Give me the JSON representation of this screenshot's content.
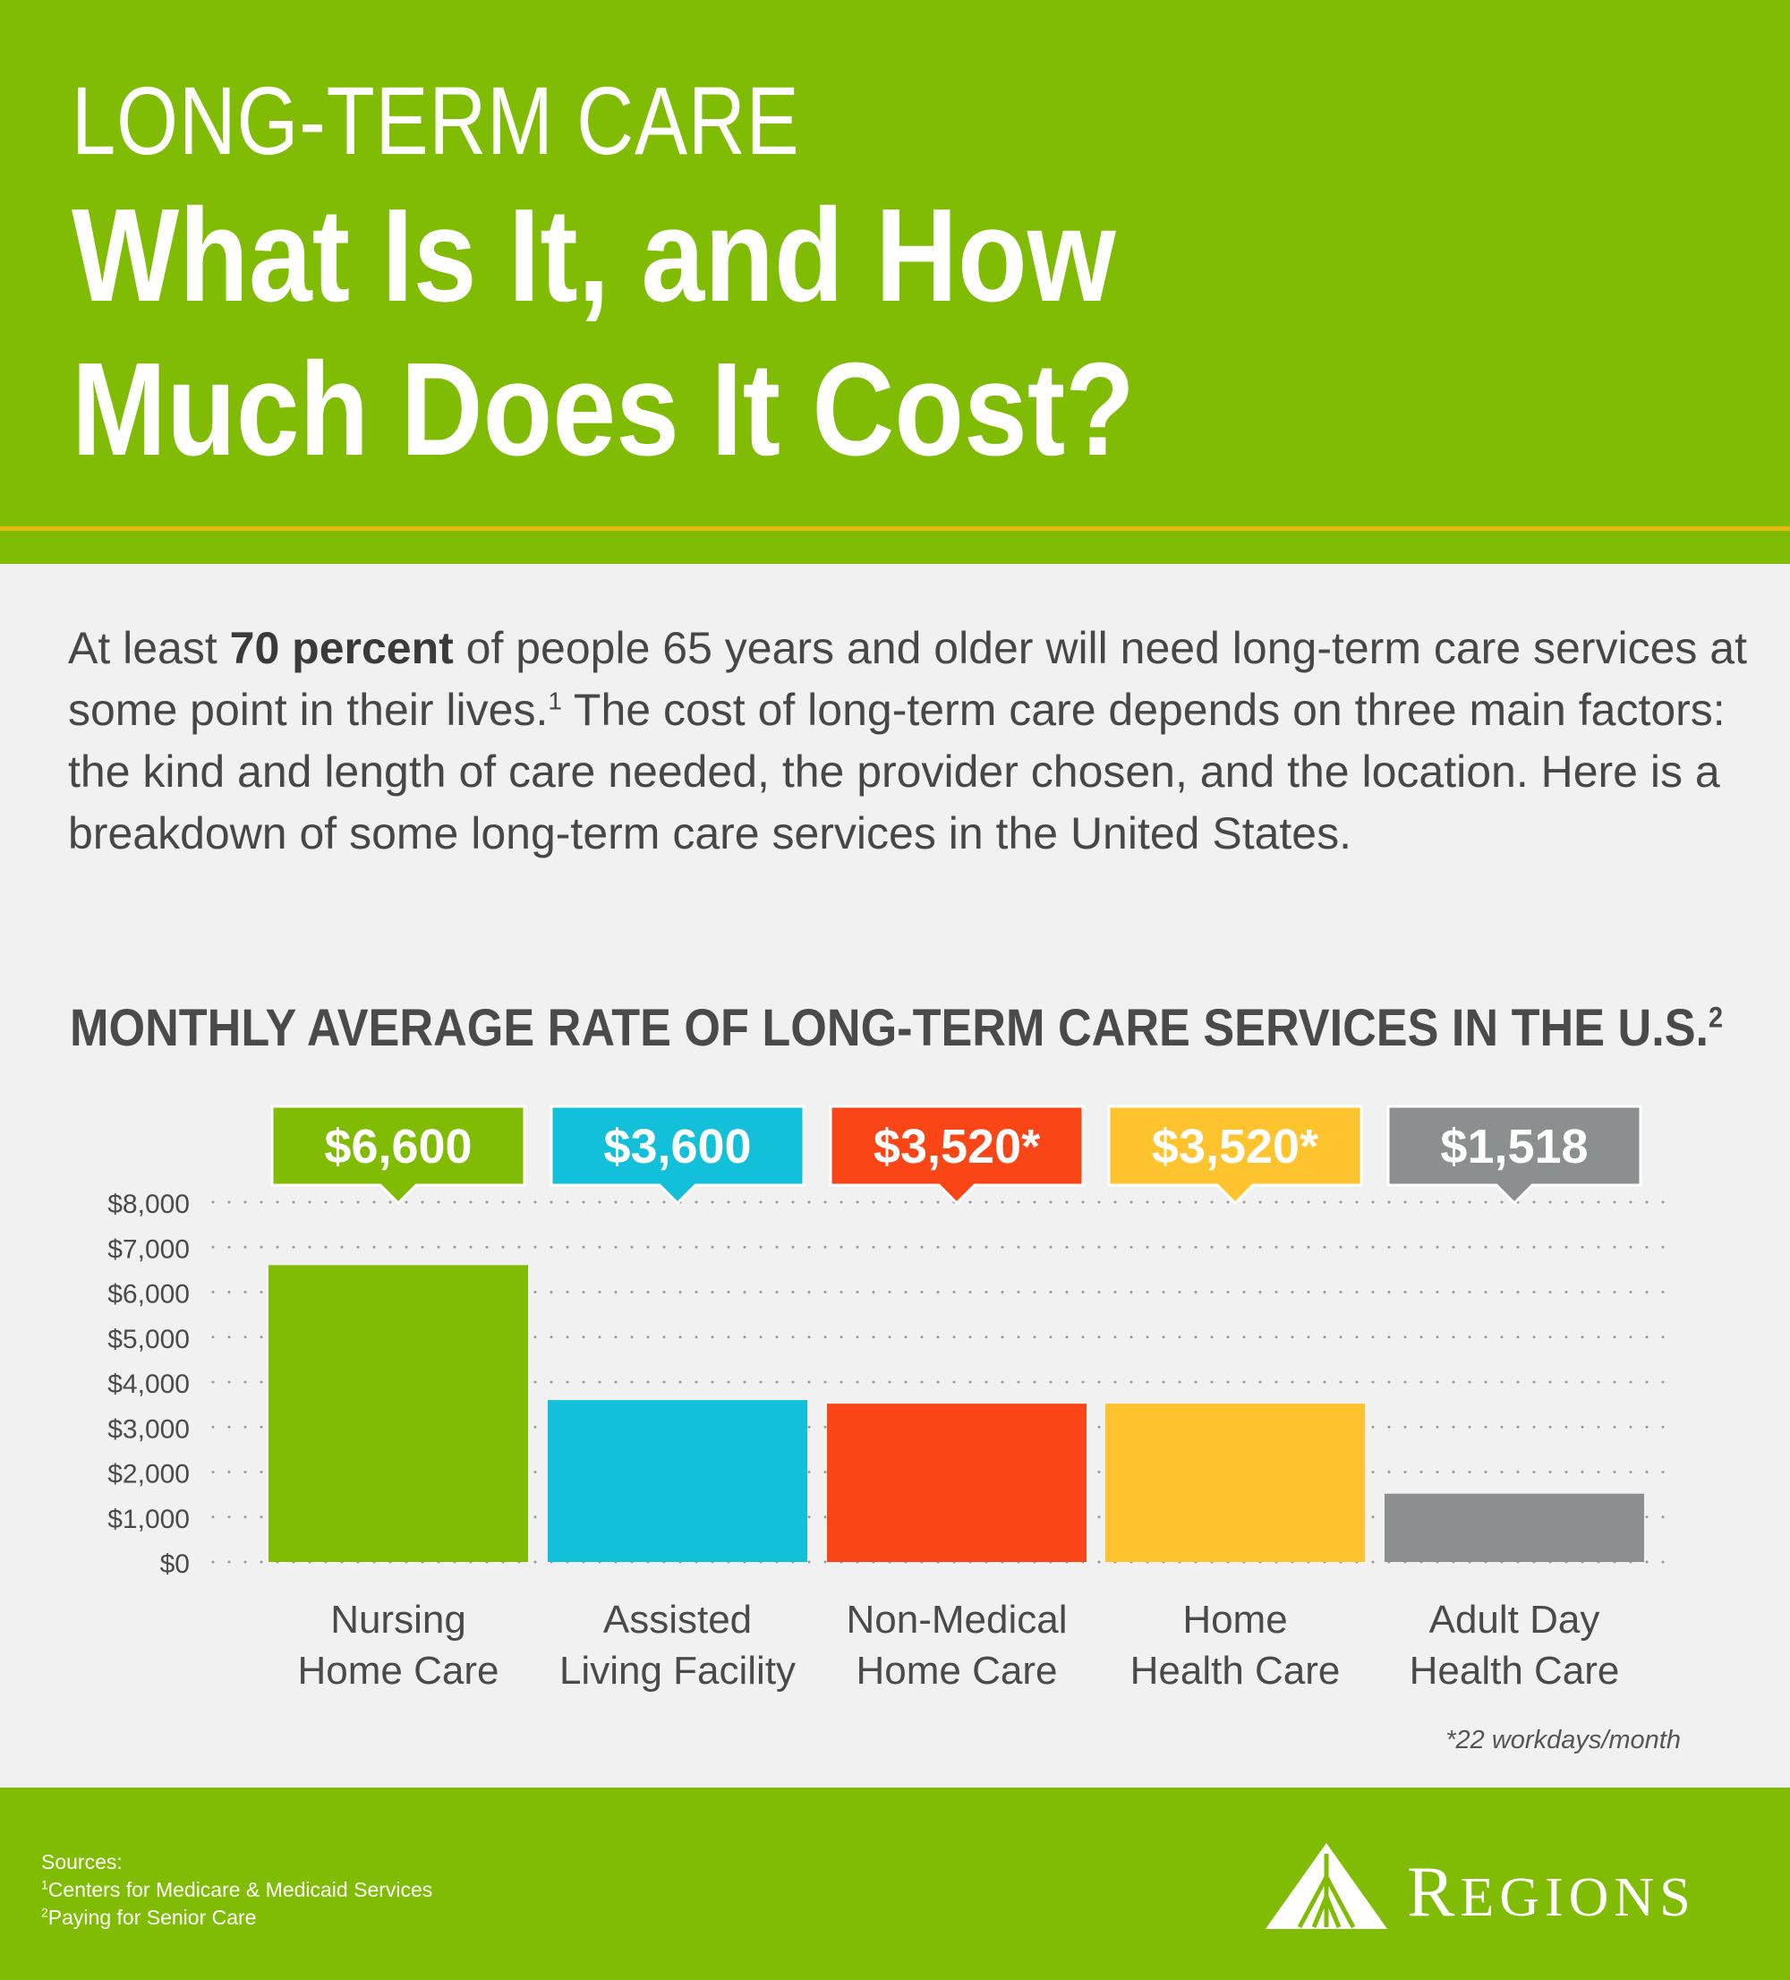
{
  "header": {
    "kicker": "LONG-TERM CARE",
    "headline_line1": "What Is It, and How",
    "headline_line2": "Much Does It Cost?"
  },
  "intro": {
    "part1": "At least ",
    "bold": "70 percent",
    "part2": " of people 65 years and older will need long-term care services at some point in their lives.",
    "sup": "1",
    "part3": " The cost of long-term care depends on three main factors: the kind and length of care needed, the provider chosen, and the location. Here is a breakdown of some long-term care services in the United States."
  },
  "chart_title": {
    "text": "MONTHLY AVERAGE RATE OF LONG-TERM CARE SERVICES IN THE U.S.",
    "sup": "2"
  },
  "chart_data": {
    "type": "bar",
    "categories": [
      "Nursing Home Care",
      "Assisted Living Facility",
      "Non-Medical Home Care",
      "Home Health Care",
      "Adult Day Health Care"
    ],
    "category_lines": [
      [
        "Nursing",
        "Home Care"
      ],
      [
        "Assisted",
        "Living Facility"
      ],
      [
        "Non-Medical",
        "Home Care"
      ],
      [
        "Home",
        "Health Care"
      ],
      [
        "Adult Day",
        "Health Care"
      ]
    ],
    "values": [
      6600,
      3600,
      3520,
      3520,
      1518
    ],
    "data_labels": [
      "$6,600",
      "$3,600",
      "$3,520*",
      "$3,520*",
      "$1,518"
    ],
    "colors": [
      "#7fbc03",
      "#13c0d9",
      "#fa4517",
      "#fec32d",
      "#8c8f90"
    ],
    "yticks": [
      0,
      1000,
      2000,
      3000,
      4000,
      5000,
      6000,
      7000,
      8000
    ],
    "ytick_labels": [
      "$0",
      "$1,000",
      "$2,000",
      "$3,000",
      "$4,000",
      "$5,000",
      "$6,000",
      "$7,000",
      "$8,000"
    ],
    "ylim": [
      0,
      8000
    ],
    "grid": "dotted",
    "title": "MONTHLY AVERAGE RATE OF LONG-TERM CARE SERVICES IN THE U.S.",
    "xlabel": "",
    "ylabel": ""
  },
  "footnote": "*22 workdays/month",
  "footer": {
    "sources_label": "Sources:",
    "sources": [
      {
        "sup": "1",
        "text": "Centers for Medicare & Medicaid Services"
      },
      {
        "sup": "2",
        "text": "Paying for Senior Care"
      }
    ],
    "logo_initial": "R",
    "logo_rest": "EGIONS",
    "logo_icon": "regions-triangle-logo-icon"
  }
}
